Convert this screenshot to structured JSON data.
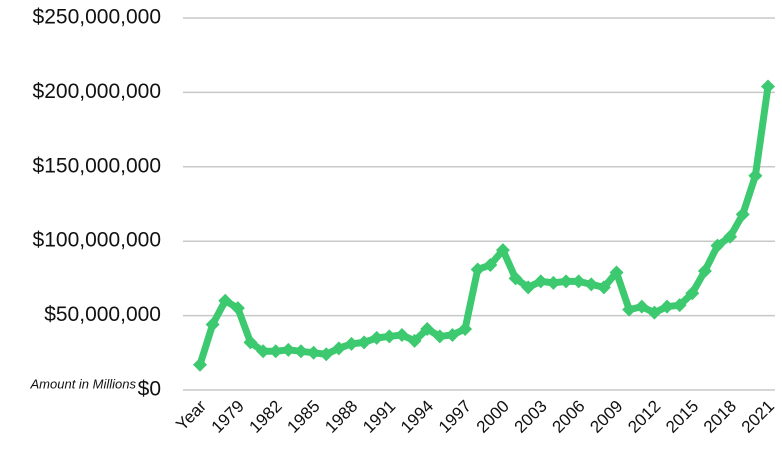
{
  "chart_data": {
    "type": "line",
    "annotation": "Amount in Millions",
    "categories": [
      "Year",
      null,
      null,
      "1979",
      null,
      null,
      "1982",
      null,
      null,
      "1985",
      null,
      null,
      "1988",
      null,
      null,
      "1991",
      null,
      null,
      "1994",
      null,
      null,
      "1997",
      null,
      null,
      "2000",
      null,
      null,
      "2003",
      null,
      null,
      "2006",
      null,
      null,
      "2009",
      null,
      null,
      "2012",
      null,
      null,
      "2015",
      null,
      null,
      "2018",
      null,
      null,
      "2021"
    ],
    "series": [
      {
        "name": "Amount",
        "color": "#3cc96f",
        "values": [
          17000000,
          44000000,
          60000000,
          55000000,
          32000000,
          26000000,
          26000000,
          27000000,
          26000000,
          25000000,
          24000000,
          28000000,
          31000000,
          32000000,
          35000000,
          36000000,
          37000000,
          33000000,
          41000000,
          36000000,
          37000000,
          41000000,
          81000000,
          84000000,
          94000000,
          75000000,
          69000000,
          73000000,
          72000000,
          73000000,
          73000000,
          71000000,
          69000000,
          79000000,
          54000000,
          56000000,
          52000000,
          56000000,
          57000000,
          65000000,
          80000000,
          97000000,
          103000000,
          118000000,
          144000000,
          204000000
        ]
      }
    ],
    "ylim": [
      0,
      250000000
    ],
    "yticks": [
      {
        "value": 0,
        "label": "$0"
      },
      {
        "value": 50000000,
        "label": "$50,000,000"
      },
      {
        "value": 100000000,
        "label": "$100,000,000"
      },
      {
        "value": 150000000,
        "label": "$150,000,000"
      },
      {
        "value": 200000000,
        "label": "$200,000,000"
      },
      {
        "value": 250000000,
        "label": "$250,000,000"
      }
    ],
    "grid": true
  }
}
